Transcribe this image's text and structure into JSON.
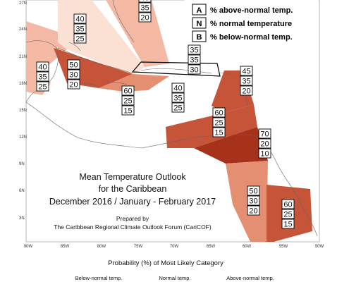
{
  "title": {
    "line1": "Mean Temperature Outlook",
    "line2": "for the Caribbean",
    "line3": "December 2016 / January - February 2017"
  },
  "credit": {
    "line1": "Prepared by",
    "line2": "The Caribbean Regional Climate Outlook Forum (CariCOF)"
  },
  "legend": {
    "rows": [
      {
        "key": "A",
        "text": "% above-normal temp."
      },
      {
        "key": "N",
        "text": "% normal temperature"
      },
      {
        "key": "B",
        "text": "% below-normal temp."
      }
    ],
    "top_numbers": [
      "45",
      "35",
      "20"
    ],
    "footer_title": "Probability (%) of Most Likely Category",
    "footer_cats": [
      "Below-normal temp.",
      "Normal temp.",
      "Above-normal temp."
    ]
  },
  "axes": {
    "lat": [
      "27N",
      "24N",
      "21N",
      "18N",
      "15N",
      "12N",
      "9N",
      "6N",
      "3N"
    ],
    "lon": [
      "90W",
      "85W",
      "80W",
      "75W",
      "70W",
      "65W",
      "60W",
      "55W",
      "50W"
    ]
  },
  "colors": {
    "very_light": "#fbe0d4",
    "light": "#f3b9a4",
    "medium": "#e58f72",
    "strong": "#c65438",
    "darkest": "#a7321c",
    "coast": "#666666"
  },
  "zones": [
    {
      "name": "gulf-bahamas",
      "color": "very_light"
    },
    {
      "name": "northeast-strip",
      "color": "light"
    },
    {
      "name": "northwest-wedge",
      "color": "light"
    },
    {
      "name": "central-america",
      "color": "light"
    },
    {
      "name": "greater-antilles-west",
      "color": "strong"
    },
    {
      "name": "jamaica-band",
      "color": "medium"
    },
    {
      "name": "lesser-antilles",
      "color": "strong"
    },
    {
      "name": "windward-band",
      "color": "strong"
    },
    {
      "name": "trinidad-guianas",
      "color": "darkest"
    },
    {
      "name": "guyana-strip",
      "color": "medium"
    },
    {
      "name": "suriname-guiana",
      "color": "strong"
    }
  ],
  "boxes": [
    {
      "name": "box-legend-top",
      "values": [
        "45",
        "35",
        "20"
      ]
    },
    {
      "name": "box-bahamas",
      "values": [
        "40",
        "35",
        "25"
      ]
    },
    {
      "name": "box-belize",
      "values": [
        "40",
        "35",
        "25"
      ]
    },
    {
      "name": "box-cuba",
      "values": [
        "50",
        "30",
        "20"
      ]
    },
    {
      "name": "box-hispaniola",
      "values": [
        "35",
        "35",
        "30"
      ]
    },
    {
      "name": "box-puerto-rico",
      "values": [
        "45",
        "35",
        "20"
      ]
    },
    {
      "name": "box-jamaica",
      "values": [
        "60",
        "25",
        "15"
      ]
    },
    {
      "name": "box-caribbean-sea",
      "values": [
        "40",
        "35",
        "25"
      ]
    },
    {
      "name": "box-windward",
      "values": [
        "60",
        "25",
        "15"
      ]
    },
    {
      "name": "box-trinidad",
      "values": [
        "70",
        "20",
        "10"
      ]
    },
    {
      "name": "box-guyana",
      "values": [
        "50",
        "30",
        "20"
      ]
    },
    {
      "name": "box-suriname",
      "values": [
        "60",
        "25",
        "15"
      ]
    }
  ]
}
